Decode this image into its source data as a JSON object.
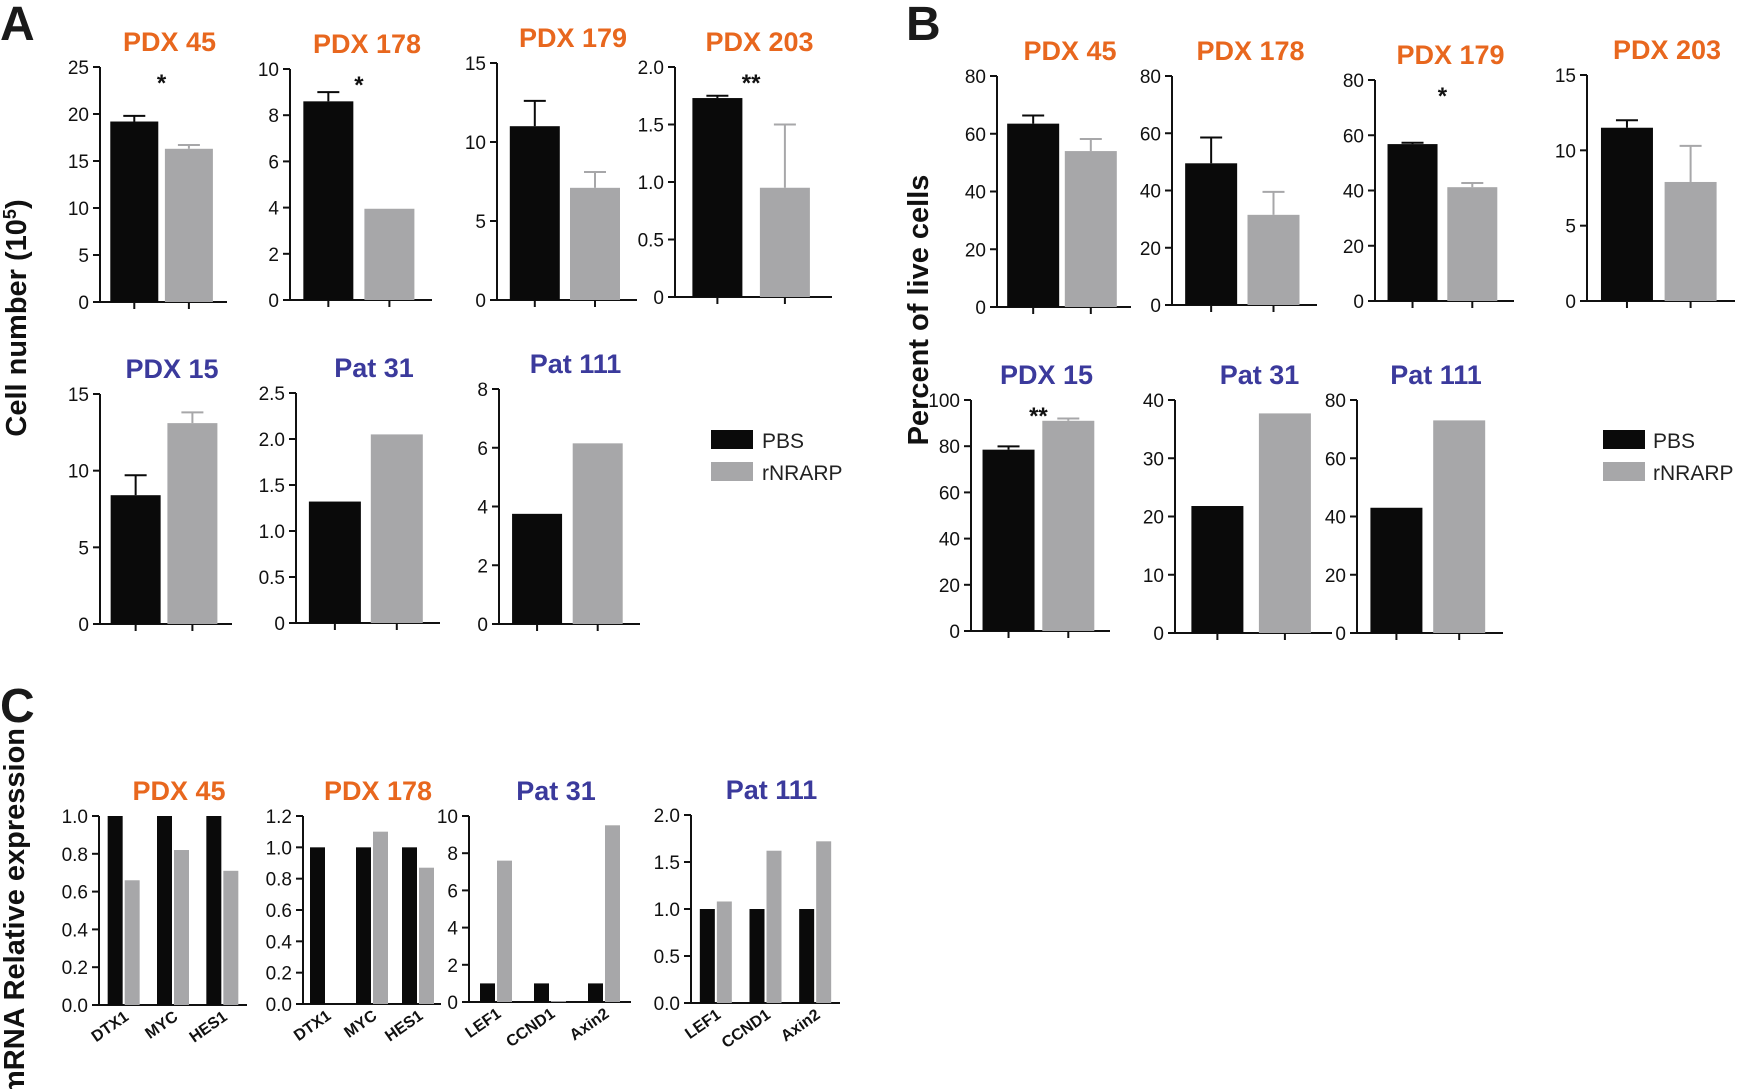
{
  "panels": {
    "A": {
      "label": "A",
      "ylabel_main": "Cell number (10",
      "ylabel_sup": "5",
      "ylabel_end": ")"
    },
    "B": {
      "label": "B",
      "ylabel": "Percent of live cells"
    },
    "C": {
      "label": "C",
      "ylabel": "mRNA Relative expression"
    }
  },
  "colors": {
    "pbs": "#0a0a0a",
    "rnrarp": "#a7a7a9",
    "orange": "#e8671e",
    "blue": "#3b3a9c"
  },
  "legend": [
    {
      "panel": "A",
      "items": [
        {
          "label": "PBS",
          "color": "#0a0a0a"
        },
        {
          "label": "rNRARP",
          "color": "#a7a7a9"
        }
      ]
    },
    {
      "panel": "B",
      "items": [
        {
          "label": "PBS",
          "color": "#0a0a0a"
        },
        {
          "label": "rNRARP",
          "color": "#a7a7a9"
        }
      ]
    }
  ],
  "chart_data": [
    {
      "id": "A1",
      "panel": "A",
      "type": "bar",
      "title": "PDX 45",
      "title_color": "#e8671e",
      "ylim": [
        0,
        25
      ],
      "ticks": [
        0,
        5,
        10,
        15,
        20,
        25
      ],
      "categories": [
        "PBS",
        "rNRARP"
      ],
      "values": [
        19.2,
        16.3
      ],
      "errors": [
        0.6,
        0.4
      ],
      "sig": "*"
    },
    {
      "id": "A2",
      "panel": "A",
      "type": "bar",
      "title": "PDX 178",
      "title_color": "#e8671e",
      "ylim": [
        0,
        10
      ],
      "ticks": [
        0,
        2,
        4,
        6,
        8,
        10
      ],
      "categories": [
        "PBS",
        "rNRARP"
      ],
      "values": [
        8.6,
        3.95
      ],
      "errors": [
        0.4,
        0
      ],
      "sig": "*"
    },
    {
      "id": "A3",
      "panel": "A",
      "type": "bar",
      "title": "PDX 179",
      "title_color": "#e8671e",
      "ylim": [
        0,
        15
      ],
      "ticks": [
        0,
        5,
        10,
        15
      ],
      "categories": [
        "PBS",
        "rNRARP"
      ],
      "values": [
        11.0,
        7.1
      ],
      "errors": [
        1.6,
        1.0
      ],
      "sig": ""
    },
    {
      "id": "A4",
      "panel": "A",
      "type": "bar",
      "title": "PDX 203",
      "title_color": "#e8671e",
      "ylim": [
        0,
        2.0
      ],
      "ticks": [
        "0",
        "0.5",
        "1.0",
        "1.5",
        "2.0"
      ],
      "categories": [
        "PBS",
        "rNRARP"
      ],
      "values": [
        1.73,
        0.95
      ],
      "errors": [
        0.02,
        0.55
      ],
      "sig": "**"
    },
    {
      "id": "A5",
      "panel": "A",
      "type": "bar",
      "title": "PDX 15",
      "title_color": "#3b3a9c",
      "ylim": [
        0,
        15
      ],
      "ticks": [
        0,
        5,
        10,
        15
      ],
      "categories": [
        "PBS",
        "rNRARP"
      ],
      "values": [
        8.4,
        13.1
      ],
      "errors": [
        1.3,
        0.7
      ],
      "sig": ""
    },
    {
      "id": "A6",
      "panel": "A",
      "type": "bar",
      "title": "Pat 31",
      "title_color": "#3b3a9c",
      "ylim": [
        0,
        2.5
      ],
      "ticks": [
        "0",
        "0.5",
        "1.0",
        "1.5",
        "2.0",
        "2.5"
      ],
      "categories": [
        "PBS",
        "rNRARP"
      ],
      "values": [
        1.32,
        2.05
      ],
      "errors": [
        0,
        0
      ],
      "sig": ""
    },
    {
      "id": "A7",
      "panel": "A",
      "type": "bar",
      "title": "Pat 111",
      "title_color": "#3b3a9c",
      "ylim": [
        0,
        8
      ],
      "ticks": [
        0,
        2,
        4,
        6,
        8
      ],
      "categories": [
        "PBS",
        "rNRARP"
      ],
      "values": [
        3.75,
        6.15
      ],
      "errors": [
        0,
        0
      ],
      "sig": ""
    },
    {
      "id": "B1",
      "panel": "B",
      "type": "bar",
      "title": "PDX 45",
      "title_color": "#e8671e",
      "ylim": [
        0,
        80
      ],
      "ticks": [
        0,
        20,
        40,
        60,
        80
      ],
      "categories": [
        "PBS",
        "rNRARP"
      ],
      "values": [
        63.5,
        54.0
      ],
      "errors": [
        2.8,
        4.2
      ],
      "sig": ""
    },
    {
      "id": "B2",
      "panel": "B",
      "type": "bar",
      "title": "PDX 178",
      "title_color": "#e8671e",
      "ylim": [
        0,
        80
      ],
      "ticks": [
        0,
        20,
        40,
        60,
        80
      ],
      "categories": [
        "PBS",
        "rNRARP"
      ],
      "values": [
        49.5,
        31.5
      ],
      "errors": [
        9.0,
        8.0
      ],
      "sig": ""
    },
    {
      "id": "B3",
      "panel": "B",
      "type": "bar",
      "title": "PDX 179",
      "title_color": "#e8671e",
      "ylim": [
        0,
        80
      ],
      "ticks": [
        0,
        20,
        40,
        60,
        80
      ],
      "categories": [
        "PBS",
        "rNRARP"
      ],
      "values": [
        56.8,
        41.2
      ],
      "errors": [
        0.5,
        1.5
      ],
      "sig": "*"
    },
    {
      "id": "B4",
      "panel": "B",
      "type": "bar",
      "title": "PDX 203",
      "title_color": "#e8671e",
      "ylim": [
        0,
        15
      ],
      "ticks": [
        0,
        5,
        10,
        15
      ],
      "categories": [
        "PBS",
        "rNRARP"
      ],
      "values": [
        11.5,
        7.9
      ],
      "errors": [
        0.5,
        2.4
      ],
      "sig": ""
    },
    {
      "id": "B5",
      "panel": "B",
      "type": "bar",
      "title": "PDX 15",
      "title_color": "#3b3a9c",
      "ylim": [
        0,
        100
      ],
      "ticks": [
        0,
        20,
        40,
        60,
        80,
        100
      ],
      "categories": [
        "PBS",
        "rNRARP"
      ],
      "values": [
        78.5,
        91.0
      ],
      "errors": [
        1.4,
        1.0
      ],
      "sig": "**"
    },
    {
      "id": "B6",
      "panel": "B",
      "type": "bar",
      "title": "Pat 31",
      "title_color": "#3b3a9c",
      "ylim": [
        0,
        40
      ],
      "ticks": [
        0,
        10,
        20,
        30,
        40
      ],
      "categories": [
        "PBS",
        "rNRARP"
      ],
      "values": [
        21.8,
        37.7
      ],
      "errors": [
        0,
        0
      ],
      "sig": ""
    },
    {
      "id": "B7",
      "panel": "B",
      "type": "bar",
      "title": "Pat 111",
      "title_color": "#3b3a9c",
      "ylim": [
        0,
        80
      ],
      "ticks": [
        0,
        20,
        40,
        60,
        80
      ],
      "categories": [
        "PBS",
        "rNRARP"
      ],
      "values": [
        43.0,
        73.0
      ],
      "errors": [
        0,
        0
      ],
      "sig": ""
    },
    {
      "id": "C1",
      "panel": "C",
      "type": "bar",
      "title": "PDX 45",
      "title_color": "#e8671e",
      "ylim": [
        0,
        1.0
      ],
      "ticks": [
        "0.0",
        "0.2",
        "0.4",
        "0.6",
        "0.8",
        "1.0"
      ],
      "categories": [
        "DTX1",
        "MYC",
        "HES1"
      ],
      "series": [
        {
          "name": "PBS",
          "values": [
            1.0,
            1.0,
            1.0
          ]
        },
        {
          "name": "rNRARP",
          "values": [
            0.66,
            0.82,
            0.71
          ]
        }
      ]
    },
    {
      "id": "C2",
      "panel": "C",
      "type": "bar",
      "title": "PDX 178",
      "title_color": "#e8671e",
      "ylim": [
        0,
        1.2
      ],
      "ticks": [
        "0.0",
        "0.2",
        "0.4",
        "0.6",
        "0.8",
        "1.0",
        "1.2"
      ],
      "categories": [
        "DTX1",
        "MYC",
        "HES1"
      ],
      "series": [
        {
          "name": "PBS",
          "values": [
            1.0,
            1.0,
            1.0
          ]
        },
        {
          "name": "rNRARP",
          "values": [
            0.0,
            1.1,
            0.87
          ]
        }
      ]
    },
    {
      "id": "C3",
      "panel": "C",
      "type": "bar",
      "title": "Pat 31",
      "title_color": "#3b3a9c",
      "ylim": [
        0,
        10
      ],
      "ticks": [
        0,
        2,
        4,
        6,
        8,
        10
      ],
      "categories": [
        "LEF1",
        "CCND1",
        "Axin2"
      ],
      "series": [
        {
          "name": "PBS",
          "values": [
            1.0,
            1.0,
            1.0
          ]
        },
        {
          "name": "rNRARP",
          "values": [
            7.6,
            0.05,
            9.5
          ]
        }
      ]
    },
    {
      "id": "C4",
      "panel": "C",
      "type": "bar",
      "title": "Pat 111",
      "title_color": "#3b3a9c",
      "ylim": [
        0,
        2.0
      ],
      "ticks": [
        "0.0",
        "0.5",
        "1.0",
        "1.5",
        "2.0"
      ],
      "categories": [
        "LEF1",
        "CCND1",
        "Axin2"
      ],
      "series": [
        {
          "name": "PBS",
          "values": [
            1.0,
            1.0,
            1.0
          ]
        },
        {
          "name": "rNRARP",
          "values": [
            1.08,
            1.62,
            1.72
          ]
        }
      ]
    }
  ]
}
